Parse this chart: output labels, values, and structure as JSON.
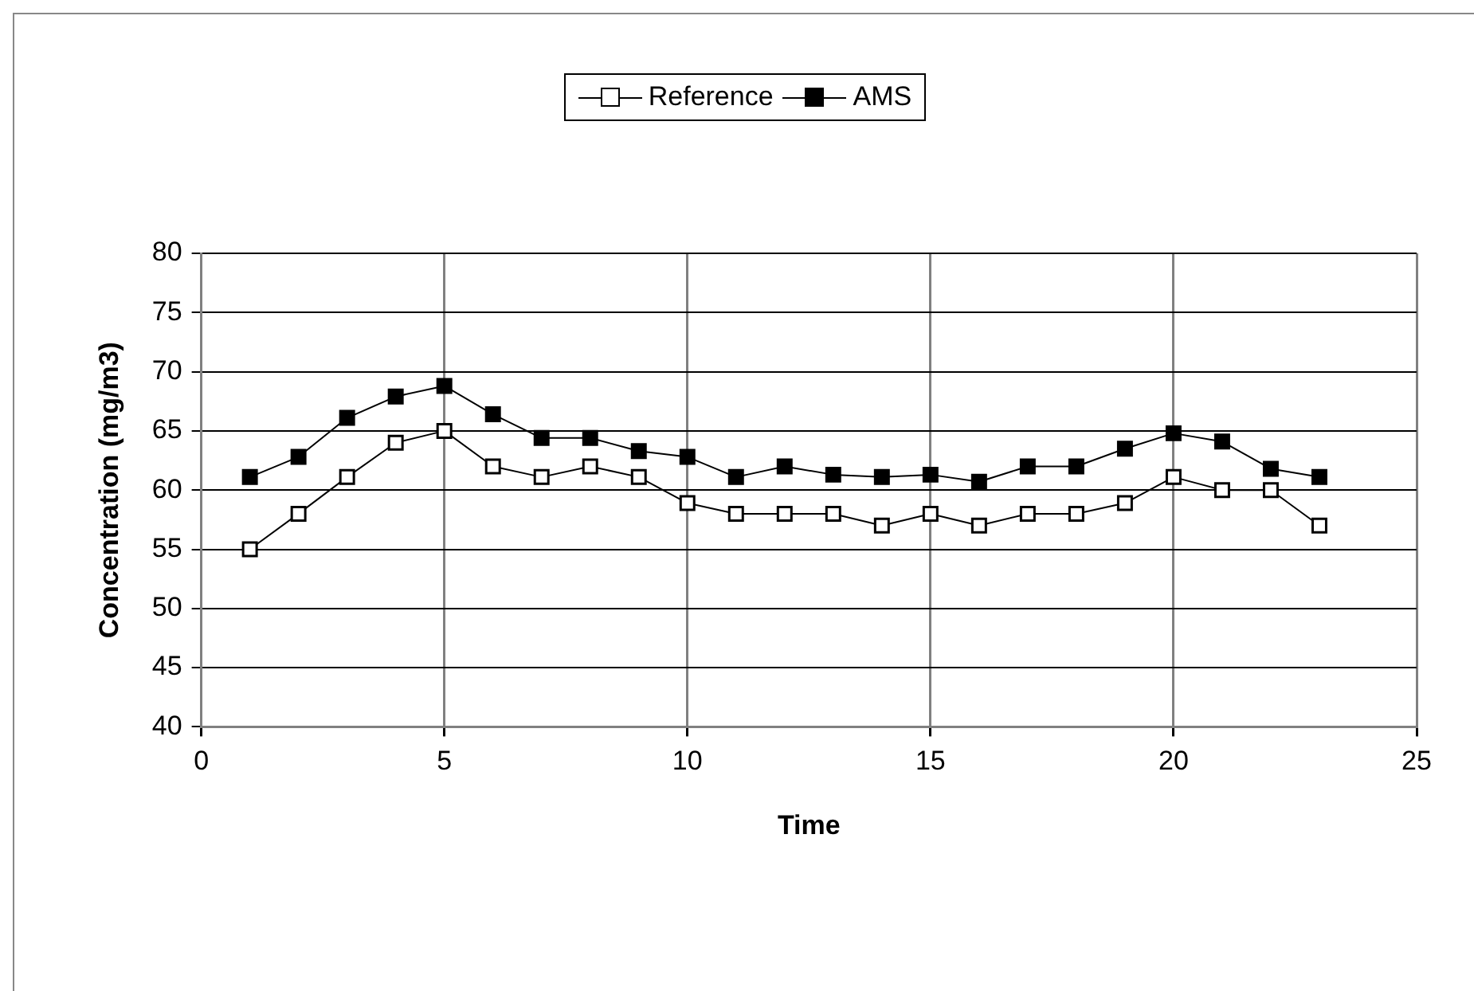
{
  "chart_data": {
    "type": "line",
    "xlabel": "Time",
    "ylabel": "Concentration (mg/m3)",
    "x": [
      1,
      2,
      3,
      4,
      5,
      6,
      7,
      8,
      9,
      10,
      11,
      12,
      13,
      14,
      15,
      16,
      17,
      18,
      19,
      20,
      21,
      22,
      23
    ],
    "series": [
      {
        "name": "Reference",
        "color": "#ffffff",
        "values": [
          55,
          58,
          61.1,
          64,
          65,
          62,
          61.1,
          62,
          61.1,
          58.9,
          58,
          58,
          58,
          57,
          58,
          57,
          58,
          58,
          58.9,
          61.1,
          60,
          60,
          57
        ]
      },
      {
        "name": "AMS",
        "color": "#000000",
        "values": [
          61.1,
          62.8,
          66.1,
          67.9,
          68.8,
          66.4,
          64.4,
          64.4,
          63.3,
          62.8,
          61.1,
          62,
          61.3,
          61.1,
          61.3,
          60.7,
          62,
          62,
          63.5,
          64.8,
          64.1,
          61.8,
          61.1
        ]
      }
    ],
    "xlim": [
      0,
      25
    ],
    "xticks": [
      0,
      5,
      10,
      15,
      20,
      25
    ],
    "ylim": [
      40,
      80
    ],
    "yticks": [
      40,
      45,
      50,
      55,
      60,
      65,
      70,
      75,
      80
    ],
    "grid": true,
    "legend": "top",
    "marker": "square",
    "line_style": "solid"
  }
}
